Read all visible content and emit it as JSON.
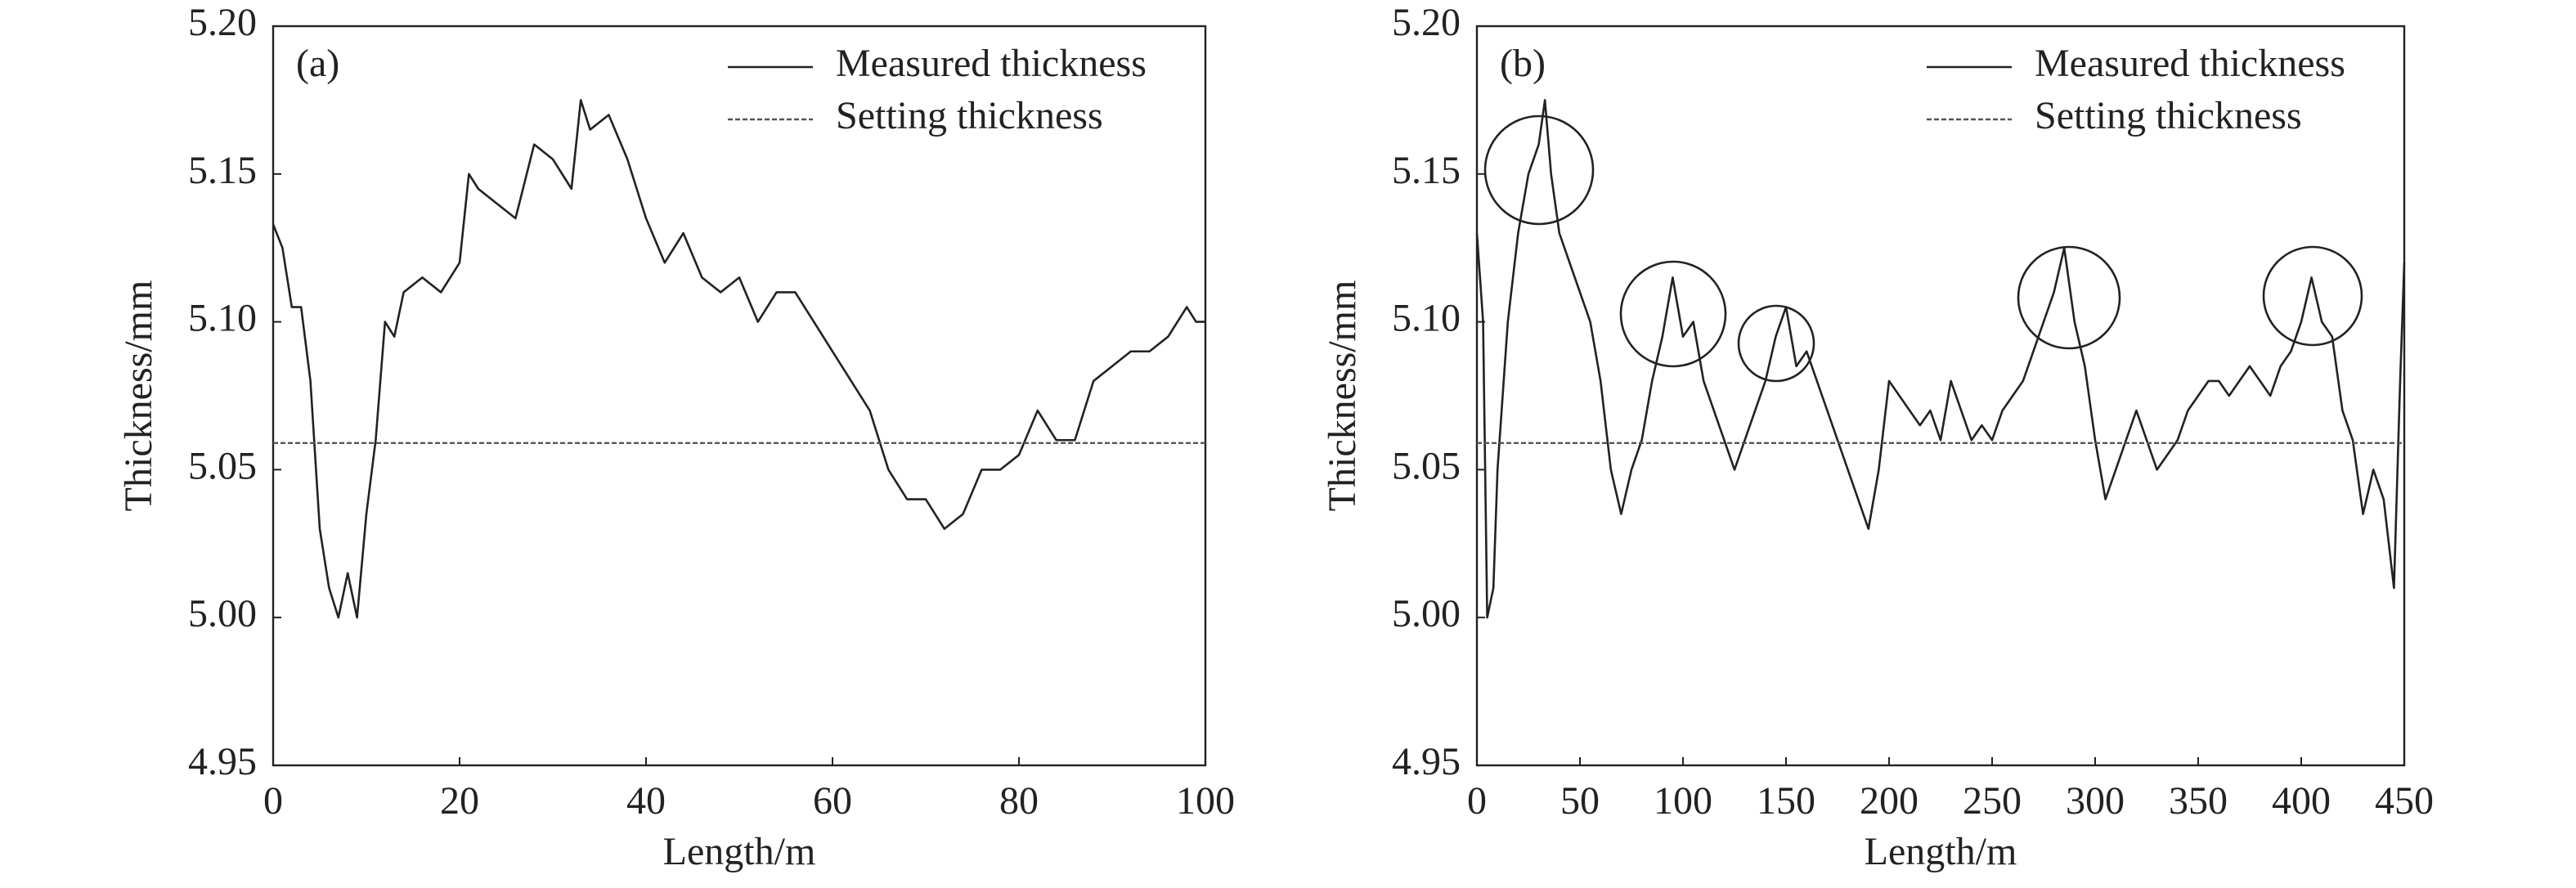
{
  "chart_data": [
    {
      "type": "line",
      "annotation": "(a)",
      "xlabel": "Length/m",
      "ylabel": "Thickness/mm",
      "xlim": [
        0,
        100
      ],
      "xticks": [
        0,
        20,
        40,
        60,
        80,
        100
      ],
      "ylim": [
        4.95,
        5.2
      ],
      "yticks": [
        4.95,
        {
          "value": 5.0,
          "label": "5.00"
        },
        5.05,
        {
          "value": 5.1,
          "label": "5.10"
        },
        5.15,
        {
          "value": 5.2,
          "label": "5.20"
        }
      ],
      "legend": "upper right",
      "x": [
        0,
        1,
        2,
        3,
        4,
        5,
        6,
        7,
        8,
        9,
        10,
        11,
        12,
        13,
        14,
        16,
        18,
        20,
        21,
        22,
        24,
        26,
        28,
        30,
        32,
        33,
        34,
        36,
        38,
        40,
        42,
        44,
        46,
        48,
        50,
        52,
        54,
        56,
        58,
        60,
        62,
        64,
        65,
        66,
        68,
        70,
        72,
        74,
        76,
        78,
        80,
        82,
        84,
        86,
        88,
        90,
        92,
        94,
        96,
        98,
        99,
        100
      ],
      "series": [
        {
          "name": "Measured thickness",
          "color": "#222222",
          "style": "solid",
          "values": [
            5.133,
            5.125,
            5.105,
            5.105,
            5.08,
            5.03,
            5.01,
            5.0,
            5.015,
            5.0,
            5.035,
            5.06,
            5.1,
            5.095,
            5.11,
            5.115,
            5.11,
            5.12,
            5.15,
            5.145,
            5.14,
            5.135,
            5.16,
            5.155,
            5.145,
            5.175,
            5.165,
            5.17,
            5.155,
            5.135,
            5.12,
            5.13,
            5.115,
            5.11,
            5.115,
            5.1,
            5.11,
            5.11,
            5.1,
            5.09,
            5.08,
            5.07,
            5.06,
            5.05,
            5.04,
            5.04,
            5.03,
            5.035,
            5.05,
            5.05,
            5.055,
            5.07,
            5.06,
            5.06,
            5.08,
            5.085,
            5.09,
            5.09,
            5.095,
            5.105,
            5.1,
            5.1
          ]
        },
        {
          "name": "Setting thickness",
          "color": "#555555",
          "style": "dashed",
          "y": 5.059
        }
      ]
    },
    {
      "type": "line",
      "annotation": "(b)",
      "xlabel": "Length/m",
      "ylabel": "Thickness/mm",
      "xlim": [
        0,
        450
      ],
      "xticks": [
        0,
        50,
        100,
        150,
        200,
        250,
        300,
        350,
        400,
        450
      ],
      "ylim": [
        4.95,
        5.2
      ],
      "yticks": [
        4.95,
        {
          "value": 5.0,
          "label": "5.00"
        },
        5.05,
        {
          "value": 5.1,
          "label": "5.10"
        },
        5.15,
        {
          "value": 5.2,
          "label": "5.20"
        }
      ],
      "legend": "upper right",
      "x": [
        0,
        3,
        5,
        8,
        10,
        15,
        20,
        25,
        30,
        33,
        36,
        40,
        45,
        50,
        55,
        60,
        65,
        70,
        75,
        80,
        85,
        90,
        95,
        100,
        105,
        110,
        115,
        120,
        125,
        130,
        135,
        140,
        145,
        150,
        155,
        160,
        165,
        170,
        175,
        180,
        185,
        190,
        195,
        200,
        205,
        210,
        215,
        220,
        225,
        230,
        235,
        240,
        245,
        250,
        255,
        260,
        265,
        270,
        275,
        280,
        285,
        290,
        295,
        300,
        305,
        310,
        315,
        320,
        325,
        330,
        335,
        340,
        345,
        350,
        355,
        360,
        365,
        370,
        375,
        380,
        385,
        390,
        395,
        400,
        405,
        410,
        415,
        420,
        425,
        430,
        435,
        440,
        445,
        448,
        450
      ],
      "series": [
        {
          "name": "Measured thickness",
          "color": "#222222",
          "style": "solid",
          "values": [
            5.13,
            5.1,
            5.0,
            5.01,
            5.05,
            5.1,
            5.13,
            5.15,
            5.16,
            5.175,
            5.15,
            5.13,
            5.12,
            5.11,
            5.1,
            5.08,
            5.05,
            5.035,
            5.05,
            5.06,
            5.08,
            5.095,
            5.115,
            5.095,
            5.1,
            5.08,
            5.07,
            5.06,
            5.05,
            5.06,
            5.07,
            5.08,
            5.095,
            5.105,
            5.085,
            5.09,
            5.08,
            5.07,
            5.06,
            5.05,
            5.04,
            5.03,
            5.05,
            5.08,
            5.075,
            5.07,
            5.065,
            5.07,
            5.06,
            5.08,
            5.07,
            5.06,
            5.065,
            5.06,
            5.07,
            5.075,
            5.08,
            5.09,
            5.1,
            5.11,
            5.125,
            5.1,
            5.085,
            5.06,
            5.04,
            5.05,
            5.06,
            5.07,
            5.06,
            5.05,
            5.055,
            5.06,
            5.07,
            5.075,
            5.08,
            5.08,
            5.075,
            5.08,
            5.085,
            5.08,
            5.075,
            5.085,
            5.09,
            5.1,
            5.115,
            5.1,
            5.095,
            5.07,
            5.06,
            5.035,
            5.05,
            5.04,
            5.01,
            5.08,
            5.12
          ]
        },
        {
          "name": "Setting thickness",
          "color": "#555555",
          "style": "dashed",
          "y": 5.059
        }
      ]
    }
  ]
}
